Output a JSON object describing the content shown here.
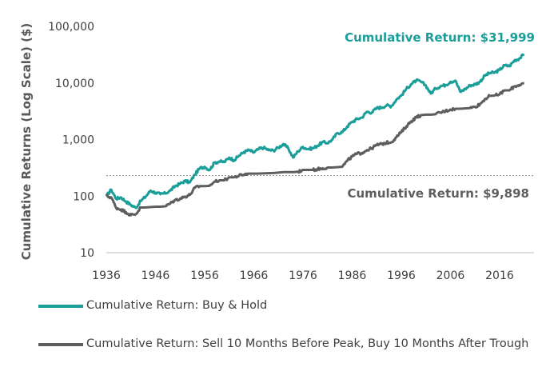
{
  "chart_data": {
    "type": "line",
    "ylabel": "Cumulative Returns (Log Scale) ($)",
    "xlabel": "",
    "y_scale": "log",
    "ylim": [
      10,
      100000
    ],
    "xlim": [
      1936,
      2023
    ],
    "y_ticks": [
      {
        "value": 10,
        "label": "10"
      },
      {
        "value": 100,
        "label": "100"
      },
      {
        "value": 1000,
        "label": "1,000"
      },
      {
        "value": 10000,
        "label": "10,000"
      },
      {
        "value": 100000,
        "label": "100,000"
      }
    ],
    "x_ticks": [
      {
        "value": 1936,
        "label": "1936"
      },
      {
        "value": 1946,
        "label": "1946"
      },
      {
        "value": 1956,
        "label": "1956"
      },
      {
        "value": 1966,
        "label": "1966"
      },
      {
        "value": 1976,
        "label": "1976"
      },
      {
        "value": 1986,
        "label": "1986"
      },
      {
        "value": 1996,
        "label": "1996"
      },
      {
        "value": 2006,
        "label": "2006"
      },
      {
        "value": 2016,
        "label": "2016"
      }
    ],
    "grid": false,
    "reference_line": {
      "value": 230,
      "style": "dotted"
    },
    "annotations": [
      {
        "text": "Cumulative Return: $31,999",
        "series": 0
      },
      {
        "text": "Cumulative Return: $9,898",
        "series": 1
      }
    ],
    "legend_position": "bottom-left",
    "series": [
      {
        "name": "Cumulative Return: Buy & Hold",
        "color": "#1a9e9a",
        "points": [
          [
            1936,
            100
          ],
          [
            1937,
            130
          ],
          [
            1938,
            90
          ],
          [
            1939,
            95
          ],
          [
            1940,
            80
          ],
          [
            1941,
            70
          ],
          [
            1942,
            62
          ],
          [
            1943,
            82
          ],
          [
            1944,
            98
          ],
          [
            1945,
            125
          ],
          [
            1946,
            115
          ],
          [
            1947,
            108
          ],
          [
            1948,
            112
          ],
          [
            1949,
            125
          ],
          [
            1950,
            150
          ],
          [
            1951,
            165
          ],
          [
            1952,
            185
          ],
          [
            1953,
            175
          ],
          [
            1954,
            240
          ],
          [
            1955,
            310
          ],
          [
            1956,
            330
          ],
          [
            1957,
            290
          ],
          [
            1958,
            390
          ],
          [
            1959,
            410
          ],
          [
            1960,
            400
          ],
          [
            1961,
            480
          ],
          [
            1962,
            430
          ],
          [
            1963,
            520
          ],
          [
            1964,
            600
          ],
          [
            1965,
            650
          ],
          [
            1966,
            590
          ],
          [
            1967,
            680
          ],
          [
            1968,
            720
          ],
          [
            1969,
            650
          ],
          [
            1970,
            640
          ],
          [
            1971,
            720
          ],
          [
            1972,
            830
          ],
          [
            1973,
            700
          ],
          [
            1974,
            480
          ],
          [
            1975,
            620
          ],
          [
            1976,
            740
          ],
          [
            1977,
            680
          ],
          [
            1978,
            700
          ],
          [
            1979,
            780
          ],
          [
            1980,
            900
          ],
          [
            1981,
            870
          ],
          [
            1982,
            1000
          ],
          [
            1983,
            1300
          ],
          [
            1984,
            1350
          ],
          [
            1985,
            1700
          ],
          [
            1986,
            2050
          ],
          [
            1987,
            2300
          ],
          [
            1988,
            2450
          ],
          [
            1989,
            3100
          ],
          [
            1990,
            3000
          ],
          [
            1991,
            3600
          ],
          [
            1992,
            3700
          ],
          [
            1993,
            4000
          ],
          [
            1994,
            3900
          ],
          [
            1995,
            5100
          ],
          [
            1996,
            6000
          ],
          [
            1997,
            7800
          ],
          [
            1998,
            9500
          ],
          [
            1999,
            11000
          ],
          [
            2000,
            10500
          ],
          [
            2001,
            9000
          ],
          [
            2002,
            6500
          ],
          [
            2003,
            8000
          ],
          [
            2004,
            8800
          ],
          [
            2005,
            9200
          ],
          [
            2006,
            10500
          ],
          [
            2007,
            11000
          ],
          [
            2008,
            7000
          ],
          [
            2009,
            7800
          ],
          [
            2010,
            9100
          ],
          [
            2011,
            9400
          ],
          [
            2012,
            10500
          ],
          [
            2013,
            13500
          ],
          [
            2014,
            15000
          ],
          [
            2015,
            15300
          ],
          [
            2016,
            17000
          ],
          [
            2017,
            20500
          ],
          [
            2018,
            19800
          ],
          [
            2019,
            25000
          ],
          [
            2020,
            27000
          ],
          [
            2021,
            31999
          ]
        ]
      },
      {
        "name": "Cumulative Return: Sell 10 Months Before Peak, Buy 10 Months After Trough",
        "color": "#5d5f5f",
        "points": [
          [
            1936,
            100
          ],
          [
            1937,
            95
          ],
          [
            1938,
            62
          ],
          [
            1939,
            58
          ],
          [
            1940,
            52
          ],
          [
            1941,
            46
          ],
          [
            1942,
            48
          ],
          [
            1943,
            63
          ],
          [
            1944,
            63
          ],
          [
            1945,
            64
          ],
          [
            1946,
            65
          ],
          [
            1947,
            65
          ],
          [
            1948,
            66
          ],
          [
            1949,
            74
          ],
          [
            1950,
            85
          ],
          [
            1951,
            90
          ],
          [
            1952,
            98
          ],
          [
            1953,
            105
          ],
          [
            1954,
            140
          ],
          [
            1955,
            150
          ],
          [
            1956,
            150
          ],
          [
            1957,
            152
          ],
          [
            1958,
            180
          ],
          [
            1959,
            190
          ],
          [
            1960,
            190
          ],
          [
            1961,
            215
          ],
          [
            1962,
            215
          ],
          [
            1963,
            230
          ],
          [
            1964,
            240
          ],
          [
            1965,
            250
          ],
          [
            1966,
            250
          ],
          [
            1967,
            250
          ],
          [
            1968,
            252
          ],
          [
            1969,
            254
          ],
          [
            1970,
            256
          ],
          [
            1971,
            260
          ],
          [
            1972,
            265
          ],
          [
            1973,
            265
          ],
          [
            1974,
            265
          ],
          [
            1975,
            270
          ],
          [
            1976,
            290
          ],
          [
            1977,
            290
          ],
          [
            1978,
            290
          ],
          [
            1979,
            300
          ],
          [
            1980,
            310
          ],
          [
            1981,
            320
          ],
          [
            1982,
            320
          ],
          [
            1983,
            325
          ],
          [
            1984,
            330
          ],
          [
            1985,
            420
          ],
          [
            1986,
            500
          ],
          [
            1987,
            560
          ],
          [
            1988,
            580
          ],
          [
            1989,
            650
          ],
          [
            1990,
            700
          ],
          [
            1991,
            800
          ],
          [
            1992,
            830
          ],
          [
            1993,
            880
          ],
          [
            1994,
            900
          ],
          [
            1995,
            1100
          ],
          [
            1996,
            1350
          ],
          [
            1997,
            1700
          ],
          [
            1998,
            2100
          ],
          [
            1999,
            2450
          ],
          [
            2000,
            2700
          ],
          [
            2001,
            2750
          ],
          [
            2002,
            2750
          ],
          [
            2003,
            2800
          ],
          [
            2004,
            3000
          ],
          [
            2005,
            3200
          ],
          [
            2006,
            3400
          ],
          [
            2007,
            3500
          ],
          [
            2008,
            3500
          ],
          [
            2009,
            3550
          ],
          [
            2010,
            3600
          ],
          [
            2011,
            3800
          ],
          [
            2012,
            4200
          ],
          [
            2013,
            5200
          ],
          [
            2014,
            5900
          ],
          [
            2015,
            6000
          ],
          [
            2016,
            6300
          ],
          [
            2017,
            7400
          ],
          [
            2018,
            7400
          ],
          [
            2019,
            8700
          ],
          [
            2020,
            9200
          ],
          [
            2021,
            9898
          ]
        ]
      }
    ]
  }
}
